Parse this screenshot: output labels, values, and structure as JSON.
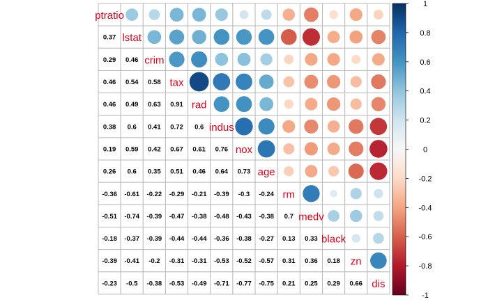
{
  "chart_data": {
    "type": "heatmap",
    "subtype": "correlation-matrix",
    "method_upper": "circle",
    "method_lower": "number",
    "variables": [
      "ptratio",
      "lstat",
      "crim",
      "tax",
      "rad",
      "indus",
      "nox",
      "age",
      "rm",
      "medv",
      "black",
      "zn",
      "dis"
    ],
    "matrix": [
      [
        1.0,
        0.37,
        0.29,
        0.46,
        0.46,
        0.38,
        0.19,
        0.26,
        -0.36,
        -0.51,
        -0.18,
        -0.39,
        -0.23
      ],
      [
        0.37,
        1.0,
        0.46,
        0.54,
        0.49,
        0.6,
        0.59,
        0.6,
        -0.61,
        -0.74,
        -0.37,
        -0.41,
        -0.5
      ],
      [
        0.29,
        0.46,
        1.0,
        0.58,
        0.63,
        0.41,
        0.42,
        0.35,
        -0.22,
        -0.39,
        -0.39,
        -0.2,
        -0.38
      ],
      [
        0.46,
        0.54,
        0.58,
        1.0,
        0.91,
        0.72,
        0.67,
        0.51,
        -0.29,
        -0.47,
        -0.44,
        -0.31,
        -0.53
      ],
      [
        0.46,
        0.49,
        0.63,
        0.91,
        1.0,
        0.6,
        0.61,
        0.46,
        -0.21,
        -0.38,
        -0.44,
        -0.31,
        -0.49
      ],
      [
        0.38,
        0.6,
        0.41,
        0.72,
        0.6,
        1.0,
        0.76,
        0.64,
        -0.39,
        -0.48,
        -0.36,
        -0.53,
        -0.71
      ],
      [
        0.19,
        0.59,
        0.42,
        0.67,
        0.61,
        0.76,
        1.0,
        0.73,
        -0.3,
        -0.43,
        -0.38,
        -0.52,
        -0.77
      ],
      [
        0.26,
        0.6,
        0.35,
        0.51,
        0.46,
        0.64,
        0.73,
        1.0,
        -0.24,
        -0.38,
        -0.27,
        -0.57,
        -0.75
      ],
      [
        -0.36,
        -0.61,
        -0.22,
        -0.29,
        -0.21,
        -0.39,
        -0.3,
        -0.24,
        1.0,
        0.7,
        0.13,
        0.31,
        0.21
      ],
      [
        -0.51,
        -0.74,
        -0.39,
        -0.47,
        -0.38,
        -0.48,
        -0.43,
        -0.38,
        0.7,
        1.0,
        0.33,
        0.36,
        0.25
      ],
      [
        -0.18,
        -0.37,
        -0.39,
        -0.44,
        -0.44,
        -0.36,
        -0.38,
        -0.27,
        0.13,
        0.33,
        1.0,
        0.18,
        0.29
      ],
      [
        -0.39,
        -0.41,
        -0.2,
        -0.31,
        -0.31,
        -0.53,
        -0.52,
        -0.57,
        0.31,
        0.36,
        0.18,
        1.0,
        0.66
      ],
      [
        -0.23,
        -0.5,
        -0.38,
        -0.53,
        -0.49,
        -0.71,
        -0.77,
        -0.75,
        0.21,
        0.25,
        0.29,
        0.66,
        1.0
      ]
    ],
    "colorbar": {
      "range": [
        -1,
        1
      ],
      "ticks": [
        "1",
        "0.8",
        "0.6",
        "0.4",
        "0.2",
        "0",
        "-0.2",
        "-0.4",
        "-0.6",
        "-0.8",
        "-1"
      ],
      "placement": "right"
    },
    "colors": {
      "positive_strong": "#053061",
      "positive_mid": "#4393c3",
      "neutral": "#f7f7f7",
      "negative_mid": "#f4a582",
      "negative_strong": "#67001f",
      "diag_label": "#e0001a",
      "number_text": "#000000",
      "grid": "#bbbbbb"
    }
  }
}
